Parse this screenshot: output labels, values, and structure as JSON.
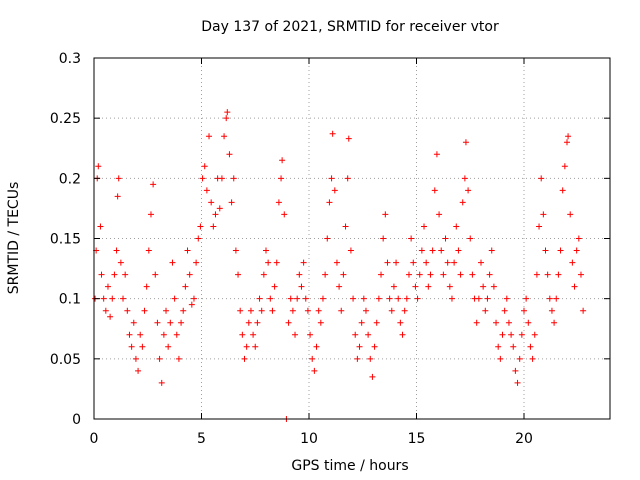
{
  "chart_data": {
    "type": "scatter",
    "title": "Day 137 of 2021, SRMTID for receiver vtor",
    "xlabel": "GPS time / hours",
    "ylabel": "SRMTID / TECUs",
    "xlim": [
      0,
      24
    ],
    "ylim": [
      0,
      0.3
    ],
    "xticks": [
      0,
      5,
      10,
      15,
      20
    ],
    "xtick_labels": [
      "0",
      "5",
      "10",
      "15",
      "20"
    ],
    "yticks": [
      0,
      0.05,
      0.1,
      0.15,
      0.2,
      0.25,
      0.3
    ],
    "ytick_labels": [
      "0",
      "0.05",
      "0.1",
      "0.15",
      "0.2",
      "0.25",
      "0.3"
    ],
    "grid": true,
    "marker": "plus",
    "series": [
      {
        "name": "SRMTID",
        "color": "#ff0000",
        "points": [
          [
            0.05,
            0.1
          ],
          [
            0.1,
            0.14
          ],
          [
            0.15,
            0.2
          ],
          [
            0.2,
            0.21
          ],
          [
            0.3,
            0.16
          ],
          [
            0.35,
            0.12
          ],
          [
            0.45,
            0.1
          ],
          [
            0.55,
            0.09
          ],
          [
            0.65,
            0.11
          ],
          [
            0.75,
            0.085
          ],
          [
            0.85,
            0.1
          ],
          [
            0.95,
            0.12
          ],
          [
            1.05,
            0.14
          ],
          [
            1.1,
            0.185
          ],
          [
            1.15,
            0.2
          ],
          [
            1.25,
            0.13
          ],
          [
            1.35,
            0.1
          ],
          [
            1.45,
            0.12
          ],
          [
            1.55,
            0.09
          ],
          [
            1.65,
            0.07
          ],
          [
            1.75,
            0.06
          ],
          [
            1.85,
            0.08
          ],
          [
            1.95,
            0.05
          ],
          [
            2.05,
            0.04
          ],
          [
            2.15,
            0.07
          ],
          [
            2.25,
            0.06
          ],
          [
            2.35,
            0.09
          ],
          [
            2.45,
            0.11
          ],
          [
            2.55,
            0.14
          ],
          [
            2.65,
            0.17
          ],
          [
            2.75,
            0.195
          ],
          [
            2.85,
            0.12
          ],
          [
            2.95,
            0.08
          ],
          [
            3.05,
            0.05
          ],
          [
            3.15,
            0.03
          ],
          [
            3.25,
            0.07
          ],
          [
            3.35,
            0.09
          ],
          [
            3.45,
            0.06
          ],
          [
            3.55,
            0.08
          ],
          [
            3.65,
            0.13
          ],
          [
            3.75,
            0.1
          ],
          [
            3.85,
            0.07
          ],
          [
            3.95,
            0.05
          ],
          [
            4.05,
            0.08
          ],
          [
            4.15,
            0.09
          ],
          [
            4.25,
            0.11
          ],
          [
            4.35,
            0.14
          ],
          [
            4.45,
            0.12
          ],
          [
            4.55,
            0.095
          ],
          [
            4.65,
            0.1
          ],
          [
            4.75,
            0.13
          ],
          [
            4.85,
            0.15
          ],
          [
            4.95,
            0.16
          ],
          [
            5.05,
            0.2
          ],
          [
            5.15,
            0.21
          ],
          [
            5.25,
            0.19
          ],
          [
            5.35,
            0.235
          ],
          [
            5.45,
            0.18
          ],
          [
            5.55,
            0.16
          ],
          [
            5.65,
            0.17
          ],
          [
            5.75,
            0.2
          ],
          [
            5.85,
            0.175
          ],
          [
            5.95,
            0.2
          ],
          [
            6.05,
            0.235
          ],
          [
            6.15,
            0.25
          ],
          [
            6.2,
            0.255
          ],
          [
            6.3,
            0.22
          ],
          [
            6.4,
            0.18
          ],
          [
            6.5,
            0.2
          ],
          [
            6.6,
            0.14
          ],
          [
            6.7,
            0.12
          ],
          [
            6.8,
            0.09
          ],
          [
            6.9,
            0.07
          ],
          [
            7.0,
            0.05
          ],
          [
            7.1,
            0.06
          ],
          [
            7.2,
            0.08
          ],
          [
            7.3,
            0.09
          ],
          [
            7.4,
            0.07
          ],
          [
            7.5,
            0.06
          ],
          [
            7.6,
            0.08
          ],
          [
            7.7,
            0.1
          ],
          [
            7.8,
            0.09
          ],
          [
            7.9,
            0.12
          ],
          [
            8.0,
            0.14
          ],
          [
            8.1,
            0.13
          ],
          [
            8.2,
            0.1
          ],
          [
            8.3,
            0.09
          ],
          [
            8.4,
            0.11
          ],
          [
            8.5,
            0.13
          ],
          [
            8.6,
            0.18
          ],
          [
            8.7,
            0.2
          ],
          [
            8.75,
            0.215
          ],
          [
            8.85,
            0.17
          ],
          [
            8.95,
            0.0
          ],
          [
            9.05,
            0.08
          ],
          [
            9.15,
            0.1
          ],
          [
            9.25,
            0.09
          ],
          [
            9.35,
            0.07
          ],
          [
            9.45,
            0.1
          ],
          [
            9.55,
            0.12
          ],
          [
            9.65,
            0.11
          ],
          [
            9.75,
            0.13
          ],
          [
            9.85,
            0.1
          ],
          [
            9.95,
            0.09
          ],
          [
            10.05,
            0.07
          ],
          [
            10.15,
            0.05
          ],
          [
            10.25,
            0.04
          ],
          [
            10.35,
            0.06
          ],
          [
            10.45,
            0.09
          ],
          [
            10.55,
            0.08
          ],
          [
            10.65,
            0.1
          ],
          [
            10.75,
            0.12
          ],
          [
            10.85,
            0.15
          ],
          [
            10.95,
            0.18
          ],
          [
            11.05,
            0.2
          ],
          [
            11.1,
            0.237
          ],
          [
            11.2,
            0.19
          ],
          [
            11.3,
            0.13
          ],
          [
            11.4,
            0.11
          ],
          [
            11.5,
            0.09
          ],
          [
            11.6,
            0.12
          ],
          [
            11.7,
            0.16
          ],
          [
            11.8,
            0.2
          ],
          [
            11.85,
            0.233
          ],
          [
            11.95,
            0.14
          ],
          [
            12.05,
            0.1
          ],
          [
            12.15,
            0.07
          ],
          [
            12.25,
            0.05
          ],
          [
            12.35,
            0.06
          ],
          [
            12.45,
            0.08
          ],
          [
            12.55,
            0.1
          ],
          [
            12.65,
            0.09
          ],
          [
            12.75,
            0.07
          ],
          [
            12.85,
            0.05
          ],
          [
            12.95,
            0.035
          ],
          [
            13.05,
            0.06
          ],
          [
            13.15,
            0.08
          ],
          [
            13.25,
            0.1
          ],
          [
            13.35,
            0.12
          ],
          [
            13.45,
            0.15
          ],
          [
            13.55,
            0.17
          ],
          [
            13.65,
            0.13
          ],
          [
            13.75,
            0.1
          ],
          [
            13.85,
            0.09
          ],
          [
            13.95,
            0.11
          ],
          [
            14.05,
            0.13
          ],
          [
            14.15,
            0.1
          ],
          [
            14.25,
            0.08
          ],
          [
            14.35,
            0.07
          ],
          [
            14.45,
            0.09
          ],
          [
            14.55,
            0.1
          ],
          [
            14.65,
            0.12
          ],
          [
            14.75,
            0.15
          ],
          [
            14.85,
            0.13
          ],
          [
            14.95,
            0.11
          ],
          [
            15.05,
            0.1
          ],
          [
            15.15,
            0.12
          ],
          [
            15.25,
            0.14
          ],
          [
            15.35,
            0.16
          ],
          [
            15.45,
            0.13
          ],
          [
            15.55,
            0.11
          ],
          [
            15.65,
            0.12
          ],
          [
            15.75,
            0.14
          ],
          [
            15.85,
            0.19
          ],
          [
            15.95,
            0.22
          ],
          [
            16.05,
            0.17
          ],
          [
            16.15,
            0.14
          ],
          [
            16.25,
            0.12
          ],
          [
            16.35,
            0.15
          ],
          [
            16.45,
            0.13
          ],
          [
            16.55,
            0.11
          ],
          [
            16.65,
            0.1
          ],
          [
            16.75,
            0.13
          ],
          [
            16.85,
            0.16
          ],
          [
            16.95,
            0.14
          ],
          [
            17.05,
            0.12
          ],
          [
            17.15,
            0.18
          ],
          [
            17.25,
            0.2
          ],
          [
            17.3,
            0.23
          ],
          [
            17.4,
            0.19
          ],
          [
            17.5,
            0.15
          ],
          [
            17.6,
            0.12
          ],
          [
            17.7,
            0.1
          ],
          [
            17.8,
            0.08
          ],
          [
            17.9,
            0.1
          ],
          [
            18.0,
            0.13
          ],
          [
            18.1,
            0.11
          ],
          [
            18.2,
            0.09
          ],
          [
            18.3,
            0.1
          ],
          [
            18.4,
            0.12
          ],
          [
            18.5,
            0.14
          ],
          [
            18.6,
            0.11
          ],
          [
            18.7,
            0.08
          ],
          [
            18.8,
            0.06
          ],
          [
            18.9,
            0.05
          ],
          [
            19.0,
            0.07
          ],
          [
            19.1,
            0.09
          ],
          [
            19.2,
            0.1
          ],
          [
            19.3,
            0.08
          ],
          [
            19.4,
            0.07
          ],
          [
            19.5,
            0.06
          ],
          [
            19.6,
            0.04
          ],
          [
            19.7,
            0.03
          ],
          [
            19.8,
            0.05
          ],
          [
            19.9,
            0.07
          ],
          [
            20.0,
            0.09
          ],
          [
            20.1,
            0.1
          ],
          [
            20.2,
            0.08
          ],
          [
            20.3,
            0.06
          ],
          [
            20.4,
            0.05
          ],
          [
            20.5,
            0.07
          ],
          [
            20.6,
            0.12
          ],
          [
            20.7,
            0.16
          ],
          [
            20.8,
            0.2
          ],
          [
            20.9,
            0.17
          ],
          [
            21.0,
            0.14
          ],
          [
            21.1,
            0.12
          ],
          [
            21.2,
            0.1
          ],
          [
            21.3,
            0.09
          ],
          [
            21.4,
            0.08
          ],
          [
            21.5,
            0.1
          ],
          [
            21.6,
            0.12
          ],
          [
            21.7,
            0.14
          ],
          [
            21.8,
            0.19
          ],
          [
            21.9,
            0.21
          ],
          [
            22.0,
            0.23
          ],
          [
            22.05,
            0.235
          ],
          [
            22.15,
            0.17
          ],
          [
            22.25,
            0.13
          ],
          [
            22.35,
            0.11
          ],
          [
            22.45,
            0.14
          ],
          [
            22.55,
            0.15
          ],
          [
            22.65,
            0.12
          ],
          [
            22.75,
            0.09
          ]
        ]
      }
    ]
  }
}
